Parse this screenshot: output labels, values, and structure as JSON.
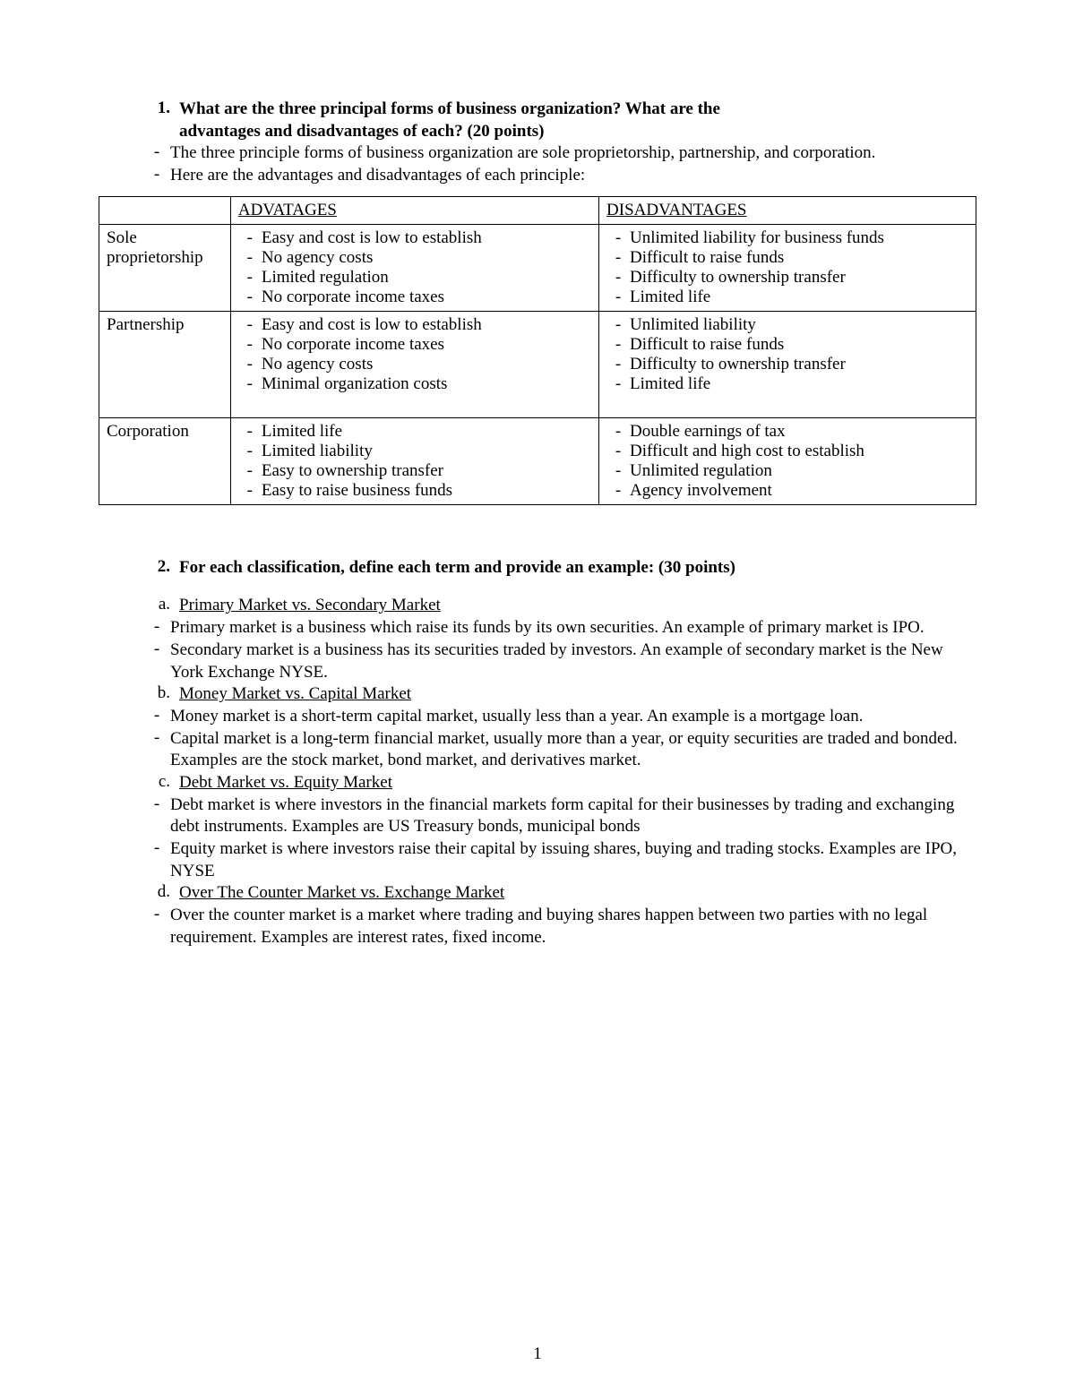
{
  "page_number": "1",
  "q1": {
    "number": "1.",
    "question_line1": "What are the three principal forms of business organization? What are the",
    "question_line2": "advantages and disadvantages of each? (20 points)",
    "answer1": "The three principle forms of business organization are sole proprietorship, partnership, and corporation.",
    "answer2": "Here are the advantages and disadvantages of each principle:"
  },
  "table": {
    "header_adv": "ADVATAGES",
    "header_dis": "DISADVANTAGES",
    "rows": [
      {
        "name": "Sole proprietorship",
        "adv": [
          "Easy and cost is low to establish",
          "No agency costs",
          "Limited regulation",
          "No corporate income taxes"
        ],
        "dis": [
          "Unlimited liability for business funds",
          "Difficult to raise funds",
          "Difficulty to ownership transfer",
          "Limited life"
        ]
      },
      {
        "name": "Partnership",
        "adv": [
          "Easy and cost is low to establish",
          "No corporate income taxes",
          "No agency costs",
          "Minimal organization costs"
        ],
        "dis": [
          "Unlimited liability",
          "Difficult to raise funds",
          "Difficulty to ownership transfer",
          "Limited life"
        ],
        "extra_space": true
      },
      {
        "name": "Corporation",
        "adv": [
          "Limited life",
          "Limited liability",
          "Easy to ownership transfer",
          "Easy to raise business funds"
        ],
        "dis": [
          "Double earnings of tax",
          "Difficult and high cost to establish",
          "Unlimited regulation",
          "Agency involvement"
        ]
      }
    ]
  },
  "q2": {
    "number": "2.",
    "question": "For each classification, define each term and provide an example: (30 points)",
    "items": [
      {
        "letter": "a.",
        "title": "Primary Market vs. Secondary Market"
      },
      {
        "dash": "-",
        "text": "Primary market is a business which raise its funds by its own securities. An example of primary market is IPO."
      },
      {
        "dash": "-",
        "text": "Secondary market is a business has its securities traded by investors. An example of secondary market is the New York Exchange NYSE."
      },
      {
        "letter": "b.",
        "title": "Money Market vs. Capital Market"
      },
      {
        "dash": "-",
        "text": "Money market is a short-term capital market, usually less than a year. An example is a mortgage loan."
      },
      {
        "dash": "-",
        "text": "Capital market is a long-term financial market, usually more than a year, or equity securities are traded and bonded. Examples are the stock market, bond market, and derivatives market."
      },
      {
        "letter": "c.",
        "title": "Debt Market vs. Equity Market"
      },
      {
        "dash": "-",
        "text": "Debt market is where investors in the financial markets form capital for their businesses by trading and exchanging debt instruments. Examples are US Treasury bonds, municipal bonds"
      },
      {
        "dash": "-",
        "text": "Equity market is where investors raise their capital by issuing shares, buying and trading stocks. Examples are IPO, NYSE"
      },
      {
        "letter": "d.",
        "title": "Over The Counter Market vs. Exchange Market"
      },
      {
        "dash": "-",
        "text": "Over the counter market is a market where trading and buying shares happen between two parties with no legal requirement. Examples are interest rates, fixed income."
      }
    ]
  }
}
